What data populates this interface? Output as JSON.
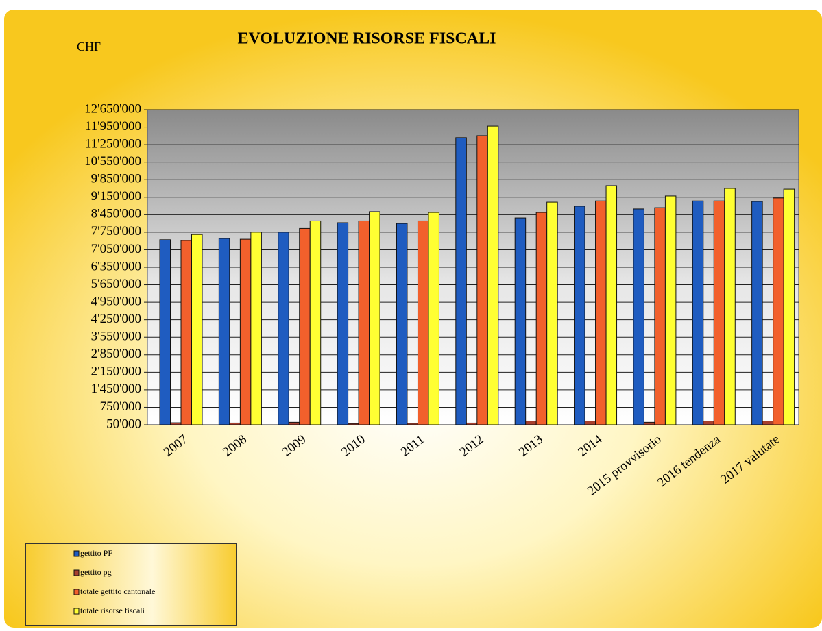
{
  "chart_data": {
    "type": "bar",
    "title": "EVOLUZIONE RISORSE FISCALI",
    "unit_label": "CHF",
    "categories": [
      "2007",
      "2008",
      "2009",
      "2010",
      "2011",
      "2012",
      "2013",
      "2014",
      "2015 provvisorio",
      "2016 tendenza",
      "2017 valutate"
    ],
    "series": [
      {
        "name": "gettito PF",
        "color": "#1f5cc0",
        "values": [
          7450000,
          7500000,
          7750000,
          8130000,
          8100000,
          11530000,
          8320000,
          8790000,
          8680000,
          9000000,
          8980000
        ]
      },
      {
        "name": "gettito pg",
        "color": "#a8402e",
        "values": [
          130000,
          120000,
          150000,
          100000,
          110000,
          120000,
          200000,
          200000,
          150000,
          200000,
          200000
        ]
      },
      {
        "name": "totale gettito cantonale",
        "color": "#f2602c",
        "values": [
          7420000,
          7470000,
          7900000,
          8200000,
          8200000,
          11610000,
          8540000,
          9000000,
          8730000,
          9000000,
          9120000
        ]
      },
      {
        "name": "totale risorse fiscali",
        "color": "#ffff33",
        "values": [
          7660000,
          7750000,
          8200000,
          8570000,
          8540000,
          11990000,
          8950000,
          9610000,
          9200000,
          9500000,
          9470000
        ]
      }
    ],
    "ylim": [
      50000,
      12650000
    ],
    "yticks": [
      {
        "value": 50000,
        "label": "50'000"
      },
      {
        "value": 750000,
        "label": "750'000"
      },
      {
        "value": 1450000,
        "label": "1'450'000"
      },
      {
        "value": 2150000,
        "label": "2'150'000"
      },
      {
        "value": 2850000,
        "label": "2'850'000"
      },
      {
        "value": 3550000,
        "label": "3'550'000"
      },
      {
        "value": 4250000,
        "label": "4'250'000"
      },
      {
        "value": 4950000,
        "label": "4'950'000"
      },
      {
        "value": 5650000,
        "label": "5'650'000"
      },
      {
        "value": 6350000,
        "label": "6'350'000"
      },
      {
        "value": 7050000,
        "label": "7'050'000"
      },
      {
        "value": 7750000,
        "label": "7'750'000"
      },
      {
        "value": 8450000,
        "label": "8'450'000"
      },
      {
        "value": 9150000,
        "label": "9'150'000"
      },
      {
        "value": 9850000,
        "label": "9'850'000"
      },
      {
        "value": 10550000,
        "label": "10'550'000"
      },
      {
        "value": 11250000,
        "label": "11'250'000"
      },
      {
        "value": 11950000,
        "label": "11'950'000"
      },
      {
        "value": 12650000,
        "label": "12'650'000"
      }
    ],
    "grid": true,
    "legend": "bottom-left"
  }
}
